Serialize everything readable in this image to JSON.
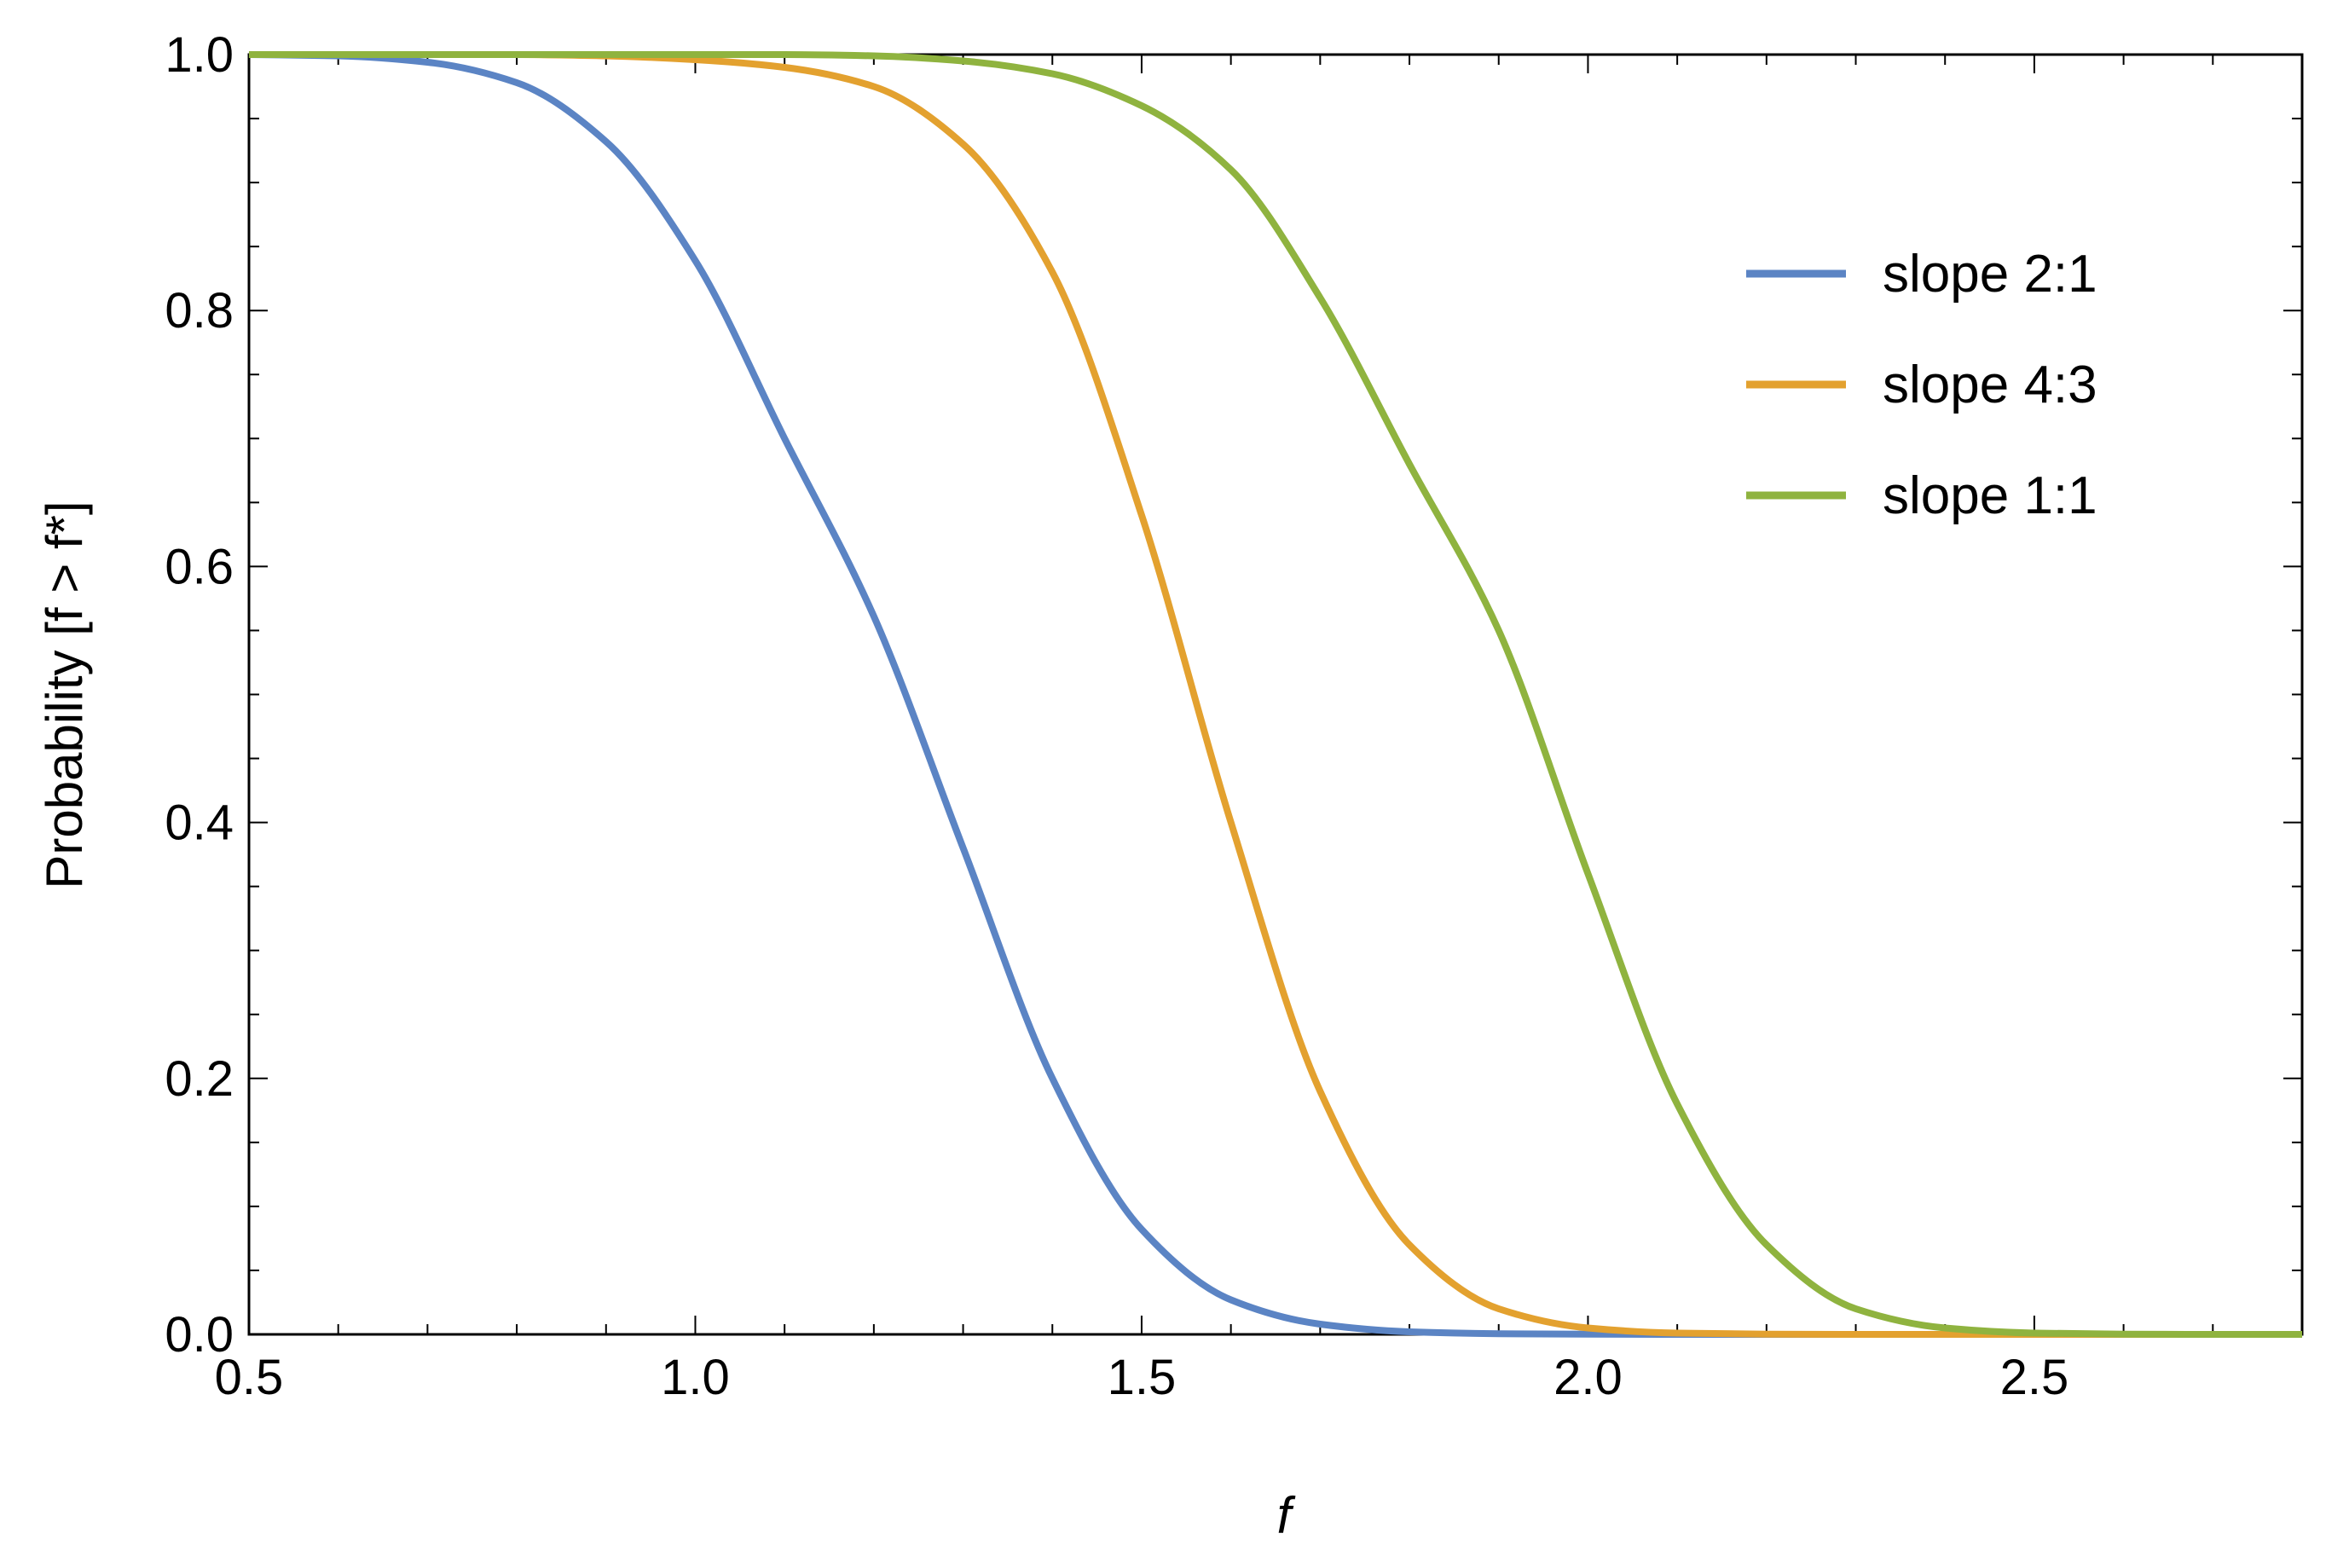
{
  "chart_data": {
    "type": "line",
    "title": "",
    "xlabel": "f",
    "ylabel": "Probability [f > f*]",
    "xlim": [
      0.5,
      2.8
    ],
    "ylim": [
      0.0,
      1.0
    ],
    "x_ticks": [
      "0.5",
      "1.0",
      "1.5",
      "2.0",
      "2.5"
    ],
    "y_ticks": [
      "0.0",
      "0.2",
      "0.4",
      "0.6",
      "0.8",
      "1.0"
    ],
    "grid": false,
    "legend_position": "top-right",
    "x": [
      0.5,
      0.6,
      0.7,
      0.8,
      0.9,
      1.0,
      1.1,
      1.2,
      1.3,
      1.4,
      1.5,
      1.6,
      1.7,
      1.8,
      1.9,
      2.0,
      2.1,
      2.2,
      2.3,
      2.4,
      2.5,
      2.6,
      2.7,
      2.8
    ],
    "series": [
      {
        "name": "slope 2:1",
        "color": "#5b84c4",
        "values": [
          1.0,
          0.999,
          0.994,
          0.978,
          0.932,
          0.839,
          0.7,
          0.561,
          0.38,
          0.2,
          0.082,
          0.027,
          0.008,
          0.002,
          0.0005,
          0.0001,
          0.0,
          0.0,
          0.0,
          0.0,
          0.0,
          0.0,
          0.0,
          0.0
        ]
      },
      {
        "name": "slope 4:3",
        "color": "#e3a12f",
        "values": [
          1.0,
          1.0,
          1.0,
          1.0,
          0.999,
          0.996,
          0.99,
          0.975,
          0.93,
          0.83,
          0.64,
          0.4,
          0.19,
          0.07,
          0.02,
          0.005,
          0.001,
          0.0002,
          0.0,
          0.0,
          0.0,
          0.0,
          0.0,
          0.0
        ]
      },
      {
        "name": "slope 1:1",
        "color": "#8fb33f",
        "values": [
          1.0,
          1.0,
          1.0,
          1.0,
          1.0,
          1.0,
          1.0,
          0.999,
          0.995,
          0.985,
          0.96,
          0.91,
          0.81,
          0.68,
          0.55,
          0.36,
          0.18,
          0.07,
          0.02,
          0.005,
          0.001,
          0.0002,
          0.0,
          0.0
        ]
      }
    ]
  }
}
